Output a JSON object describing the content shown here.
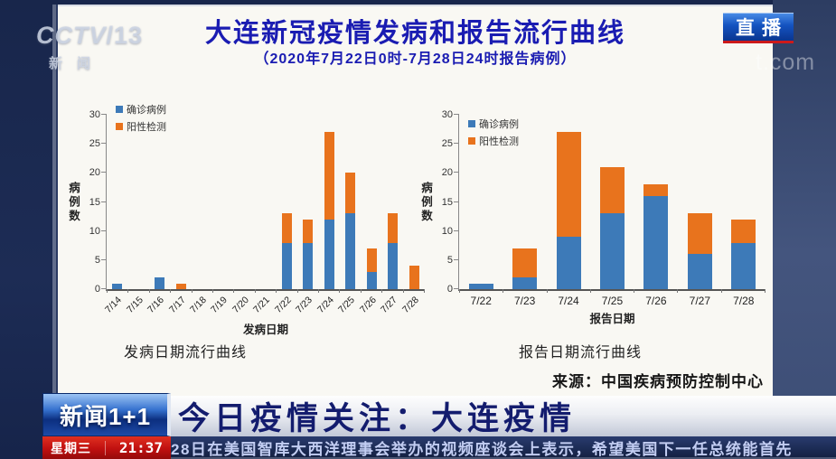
{
  "broadcast": {
    "channel_logo": {
      "name": "CCTV",
      "channel": "/13",
      "sub": "新闻"
    },
    "live_badge": "直播",
    "watermark": "t.com"
  },
  "chart_panel": {
    "title": "大连新冠疫情发病和报告流行曲线",
    "subtitle": "（2020年7月22日0时-7月28日24时报告病例）",
    "source": "来源：中国疾病预防控制中心"
  },
  "chart_data": [
    {
      "type": "bar",
      "stacked": true,
      "title": "发病日期流行曲线",
      "xlabel": "发病日期",
      "ylabel": "病例数",
      "ylim": [
        0,
        30
      ],
      "ytick_step": 5,
      "grid": false,
      "legend_position": "top-left",
      "rotate_xticks": true,
      "categories": [
        "7/14",
        "7/15",
        "7/16",
        "7/17",
        "7/18",
        "7/19",
        "7/20",
        "7/21",
        "7/22",
        "7/23",
        "7/24",
        "7/25",
        "7/26",
        "7/27",
        "7/28"
      ],
      "series": [
        {
          "name": "确诊病例",
          "color": "#3d7ab8",
          "values": [
            1,
            0,
            2,
            0,
            0,
            0,
            0,
            0,
            8,
            8,
            12,
            13,
            3,
            8,
            0
          ]
        },
        {
          "name": "阳性检测",
          "color": "#e8731d",
          "values": [
            0,
            0,
            0,
            1,
            0,
            0,
            0,
            0,
            5,
            4,
            15,
            7,
            4,
            5,
            4
          ]
        }
      ]
    },
    {
      "type": "bar",
      "stacked": true,
      "title": "报告日期流行曲线",
      "xlabel": "报告日期",
      "ylabel": "病例数",
      "ylim": [
        0,
        30
      ],
      "ytick_step": 5,
      "grid": false,
      "legend_position": "top-left",
      "rotate_xticks": false,
      "categories": [
        "7/22",
        "7/23",
        "7/24",
        "7/25",
        "7/26",
        "7/27",
        "7/28"
      ],
      "series": [
        {
          "name": "确诊病例",
          "color": "#3d7ab8",
          "values": [
            1,
            2,
            9,
            13,
            16,
            6,
            8
          ]
        },
        {
          "name": "阳性检测",
          "color": "#e8731d",
          "values": [
            0,
            5,
            18,
            8,
            2,
            7,
            4
          ]
        }
      ]
    }
  ],
  "banner": {
    "program_logo": "新闻1+1",
    "headline": "今日疫情关注：大连疫情",
    "weekday": "星期三",
    "time": "21:37",
    "ticker": "28日在美国智库大西洋理事会举办的视频座谈会上表示，希望美国下一任总统能首先"
  },
  "colors": {
    "bar_confirmed_blue": "#3d7ab8",
    "bar_positive_orange": "#e8731d",
    "title_blue": "#1a1cb2",
    "live_badge_red": "#cc1a1a",
    "ticker_navy": "#1b2a52"
  }
}
